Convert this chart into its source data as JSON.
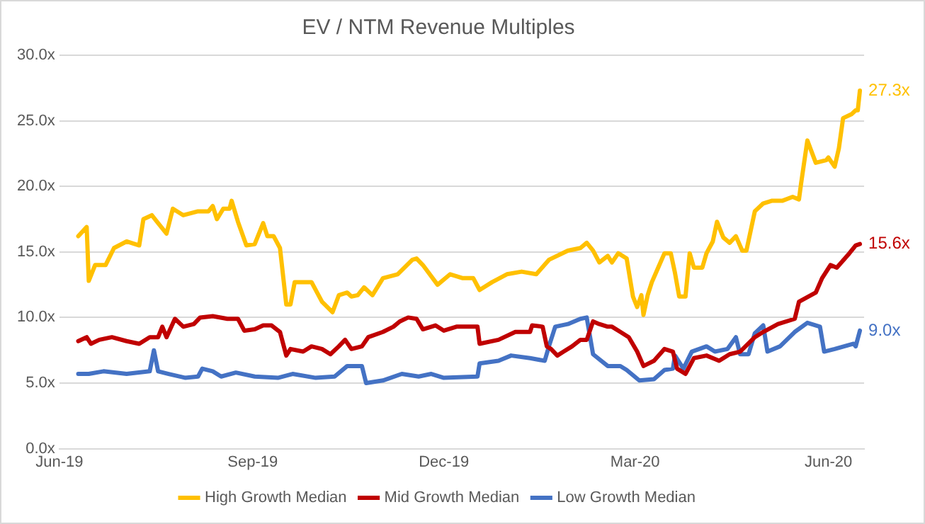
{
  "chart_data": {
    "type": "line",
    "title": "EV / NTM Revenue Multiples",
    "xlim": [
      "2019-06-01",
      "2020-06-18"
    ],
    "xticks": [
      {
        "value": "2019-06-01",
        "label": "Jun-19"
      },
      {
        "value": "2019-09-01",
        "label": "Sep-19"
      },
      {
        "value": "2019-12-01",
        "label": "Dec-19"
      },
      {
        "value": "2020-03-01",
        "label": "Mar-20"
      },
      {
        "value": "2020-06-01",
        "label": "Jun-20"
      }
    ],
    "ylim": [
      0,
      30
    ],
    "yticks": [
      {
        "value": 0,
        "label": "0.0x"
      },
      {
        "value": 5,
        "label": "5.0x"
      },
      {
        "value": 10,
        "label": "10.0x"
      },
      {
        "value": 15,
        "label": "15.0x"
      },
      {
        "value": 20,
        "label": "20.0x"
      },
      {
        "value": 25,
        "label": "25.0x"
      },
      {
        "value": 30,
        "label": "30.0x"
      }
    ],
    "grid": "y",
    "legend": "bottom",
    "marker": "none",
    "line_style": "solid",
    "series": [
      {
        "name": "High Growth Median",
        "color": "#ffc000",
        "x": [
          "2019-06-10",
          "2019-06-14",
          "2019-06-15",
          "2019-06-18",
          "2019-06-23",
          "2019-06-27",
          "2019-07-03",
          "2019-07-09",
          "2019-07-11",
          "2019-07-15",
          "2019-07-18",
          "2019-07-22",
          "2019-07-25",
          "2019-07-30",
          "2019-08-06",
          "2019-08-11",
          "2019-08-13",
          "2019-08-15",
          "2019-08-18",
          "2019-08-21",
          "2019-08-22",
          "2019-08-25",
          "2019-08-29",
          "2019-09-02",
          "2019-09-06",
          "2019-09-08",
          "2019-09-11",
          "2019-09-14",
          "2019-09-17",
          "2019-09-19",
          "2019-09-21",
          "2019-09-29",
          "2019-10-04",
          "2019-10-09",
          "2019-10-12",
          "2019-10-16",
          "2019-10-18",
          "2019-10-21",
          "2019-10-24",
          "2019-10-28",
          "2019-11-02",
          "2019-11-09",
          "2019-11-16",
          "2019-11-18",
          "2019-11-21",
          "2019-11-28",
          "2019-12-04",
          "2019-12-10",
          "2019-12-15",
          "2019-12-18",
          "2019-12-24",
          "2019-12-31",
          "2020-01-07",
          "2020-01-14",
          "2020-01-20",
          "2020-01-29",
          "2020-02-04",
          "2020-02-07",
          "2020-02-10",
          "2020-02-13",
          "2020-02-17",
          "2020-02-19",
          "2020-02-22",
          "2020-02-26",
          "2020-02-29",
          "2020-03-02",
          "2020-03-04",
          "2020-03-05",
          "2020-03-07",
          "2020-03-09",
          "2020-03-12",
          "2020-03-15",
          "2020-03-18",
          "2020-03-20",
          "2020-03-22",
          "2020-03-25",
          "2020-03-27",
          "2020-03-29",
          "2020-04-02",
          "2020-04-04",
          "2020-04-07",
          "2020-04-09",
          "2020-04-12",
          "2020-04-15",
          "2020-04-18",
          "2020-04-21",
          "2020-04-23",
          "2020-04-27",
          "2020-05-01",
          "2020-05-05",
          "2020-05-10",
          "2020-05-15",
          "2020-05-18",
          "2020-05-19",
          "2020-05-22",
          "2020-05-26",
          "2020-05-31",
          "2020-06-01",
          "2020-06-04",
          "2020-06-06",
          "2020-06-08",
          "2020-06-12",
          "2020-06-14",
          "2020-06-15",
          "2020-06-16"
        ],
        "values": [
          16.2,
          16.9,
          12.8,
          14.0,
          14.0,
          15.3,
          15.8,
          15.5,
          17.5,
          17.8,
          17.2,
          16.4,
          18.3,
          17.8,
          18.1,
          18.1,
          18.5,
          17.5,
          18.3,
          18.3,
          18.9,
          17.3,
          15.5,
          15.6,
          17.2,
          16.2,
          16.2,
          15.3,
          11.0,
          11.0,
          12.7,
          12.7,
          11.2,
          10.4,
          11.7,
          11.9,
          11.6,
          11.7,
          12.3,
          11.7,
          13.0,
          13.3,
          14.4,
          14.5,
          14.0,
          12.5,
          13.3,
          13.0,
          13.0,
          12.1,
          12.7,
          13.3,
          13.5,
          13.3,
          14.4,
          15.1,
          15.3,
          15.7,
          15.1,
          14.2,
          14.7,
          14.2,
          14.9,
          14.5,
          11.6,
          10.8,
          11.7,
          10.2,
          11.7,
          12.7,
          13.8,
          14.9,
          14.9,
          13.4,
          11.6,
          11.6,
          14.9,
          13.8,
          13.8,
          14.9,
          15.8,
          17.3,
          16.1,
          15.7,
          16.2,
          15.1,
          15.1,
          18.1,
          18.7,
          18.9,
          18.9,
          19.2,
          19.0,
          20.2,
          23.5,
          21.8,
          22.0,
          22.2,
          21.5,
          22.9,
          25.2,
          25.5,
          25.8,
          25.8,
          27.3
        ]
      },
      {
        "name": "Mid Growth Median",
        "color": "#c00000",
        "x": [
          "2019-06-10",
          "2019-06-14",
          "2019-06-16",
          "2019-06-20",
          "2019-06-26",
          "2019-07-03",
          "2019-07-09",
          "2019-07-14",
          "2019-07-18",
          "2019-07-20",
          "2019-07-22",
          "2019-07-26",
          "2019-07-30",
          "2019-08-04",
          "2019-08-07",
          "2019-08-13",
          "2019-08-20",
          "2019-08-25",
          "2019-08-28",
          "2019-09-02",
          "2019-09-06",
          "2019-09-10",
          "2019-09-14",
          "2019-09-17",
          "2019-09-19",
          "2019-09-25",
          "2019-09-29",
          "2019-10-04",
          "2019-10-08",
          "2019-10-12",
          "2019-10-15",
          "2019-10-18",
          "2019-10-23",
          "2019-10-26",
          "2019-11-02",
          "2019-11-07",
          "2019-11-10",
          "2019-11-14",
          "2019-11-18",
          "2019-11-21",
          "2019-11-27",
          "2019-12-01",
          "2019-12-07",
          "2019-12-17",
          "2019-12-18",
          "2019-12-27",
          "2020-01-04",
          "2020-01-11",
          "2020-01-12",
          "2020-01-17",
          "2020-01-19",
          "2020-01-21",
          "2020-01-24",
          "2020-01-27",
          "2020-01-31",
          "2020-02-04",
          "2020-02-07",
          "2020-02-10",
          "2020-02-13",
          "2020-02-17",
          "2020-02-19",
          "2020-02-23",
          "2020-02-27",
          "2020-03-02",
          "2020-03-05",
          "2020-03-10",
          "2020-03-15",
          "2020-03-19",
          "2020-03-21",
          "2020-03-25",
          "2020-03-29",
          "2020-04-04",
          "2020-04-10",
          "2020-04-15",
          "2020-04-20",
          "2020-04-27",
          "2020-05-01",
          "2020-05-08",
          "2020-05-16",
          "2020-05-18",
          "2020-05-26",
          "2020-05-29",
          "2020-06-02",
          "2020-06-05",
          "2020-06-11",
          "2020-06-14",
          "2020-06-16"
        ],
        "values": [
          8.2,
          8.5,
          8.0,
          8.3,
          8.5,
          8.2,
          8.0,
          8.5,
          8.5,
          9.3,
          8.5,
          9.9,
          9.3,
          9.5,
          10.0,
          10.1,
          9.9,
          9.9,
          9.0,
          9.1,
          9.4,
          9.4,
          8.9,
          7.1,
          7.6,
          7.4,
          7.8,
          7.6,
          7.2,
          7.8,
          8.3,
          7.6,
          7.8,
          8.5,
          8.9,
          9.3,
          9.7,
          10.0,
          9.9,
          9.1,
          9.4,
          9.0,
          9.3,
          9.3,
          8.0,
          8.3,
          8.9,
          8.9,
          9.4,
          9.3,
          7.8,
          7.6,
          7.1,
          7.4,
          7.8,
          8.3,
          8.3,
          9.7,
          9.5,
          9.3,
          9.3,
          8.9,
          8.5,
          7.4,
          6.3,
          6.7,
          7.6,
          7.4,
          6.1,
          5.7,
          6.9,
          7.1,
          6.7,
          7.2,
          7.4,
          8.5,
          8.9,
          9.5,
          9.9,
          11.2,
          11.9,
          13.0,
          14.0,
          13.8,
          14.9,
          15.5,
          15.6
        ]
      },
      {
        "name": "Low Growth Median",
        "color": "#4472c4",
        "x": [
          "2019-06-10",
          "2019-06-15",
          "2019-06-22",
          "2019-07-03",
          "2019-07-14",
          "2019-07-16",
          "2019-07-18",
          "2019-07-23",
          "2019-07-31",
          "2019-08-06",
          "2019-08-08",
          "2019-08-13",
          "2019-08-17",
          "2019-08-24",
          "2019-09-02",
          "2019-09-13",
          "2019-09-20",
          "2019-10-01",
          "2019-10-10",
          "2019-10-16",
          "2019-10-23",
          "2019-10-25",
          "2019-11-02",
          "2019-11-11",
          "2019-11-19",
          "2019-11-25",
          "2019-12-01",
          "2019-12-17",
          "2019-12-18",
          "2019-12-27",
          "2020-01-02",
          "2020-01-11",
          "2020-01-18",
          "2020-01-20",
          "2020-01-23",
          "2020-01-29",
          "2020-02-04",
          "2020-02-07",
          "2020-02-10",
          "2020-02-17",
          "2020-02-23",
          "2020-02-26",
          "2020-03-03",
          "2020-03-10",
          "2020-03-15",
          "2020-03-19",
          "2020-03-20",
          "2020-03-24",
          "2020-03-28",
          "2020-04-04",
          "2020-04-08",
          "2020-04-14",
          "2020-04-18",
          "2020-04-20",
          "2020-04-24",
          "2020-04-27",
          "2020-05-01",
          "2020-05-03",
          "2020-05-09",
          "2020-05-16",
          "2020-05-22",
          "2020-05-28",
          "2020-05-30",
          "2020-06-04",
          "2020-06-13",
          "2020-06-14",
          "2020-06-16"
        ],
        "values": [
          5.7,
          5.7,
          5.9,
          5.7,
          5.9,
          7.5,
          5.9,
          5.7,
          5.4,
          5.5,
          6.1,
          5.9,
          5.5,
          5.8,
          5.5,
          5.4,
          5.7,
          5.4,
          5.5,
          6.3,
          6.3,
          5.0,
          5.2,
          5.7,
          5.5,
          5.7,
          5.4,
          5.5,
          6.5,
          6.7,
          7.1,
          6.9,
          6.7,
          7.8,
          9.3,
          9.5,
          9.9,
          10.0,
          7.2,
          6.3,
          6.3,
          6.0,
          5.2,
          5.3,
          6.0,
          6.1,
          7.1,
          6.1,
          7.4,
          7.8,
          7.4,
          7.6,
          8.5,
          7.2,
          7.2,
          8.8,
          9.4,
          7.4,
          7.8,
          8.9,
          9.6,
          9.3,
          7.4,
          7.6,
          8.0,
          7.8,
          9.0
        ]
      }
    ],
    "annotations": [
      {
        "text": "27.3x",
        "x": "2020-06-16",
        "y": 27.3
      },
      {
        "text": "15.6x",
        "x": "2020-06-16",
        "y": 15.6
      },
      {
        "text": "9.0x",
        "x": "2020-06-16",
        "y": 9.0
      }
    ]
  }
}
